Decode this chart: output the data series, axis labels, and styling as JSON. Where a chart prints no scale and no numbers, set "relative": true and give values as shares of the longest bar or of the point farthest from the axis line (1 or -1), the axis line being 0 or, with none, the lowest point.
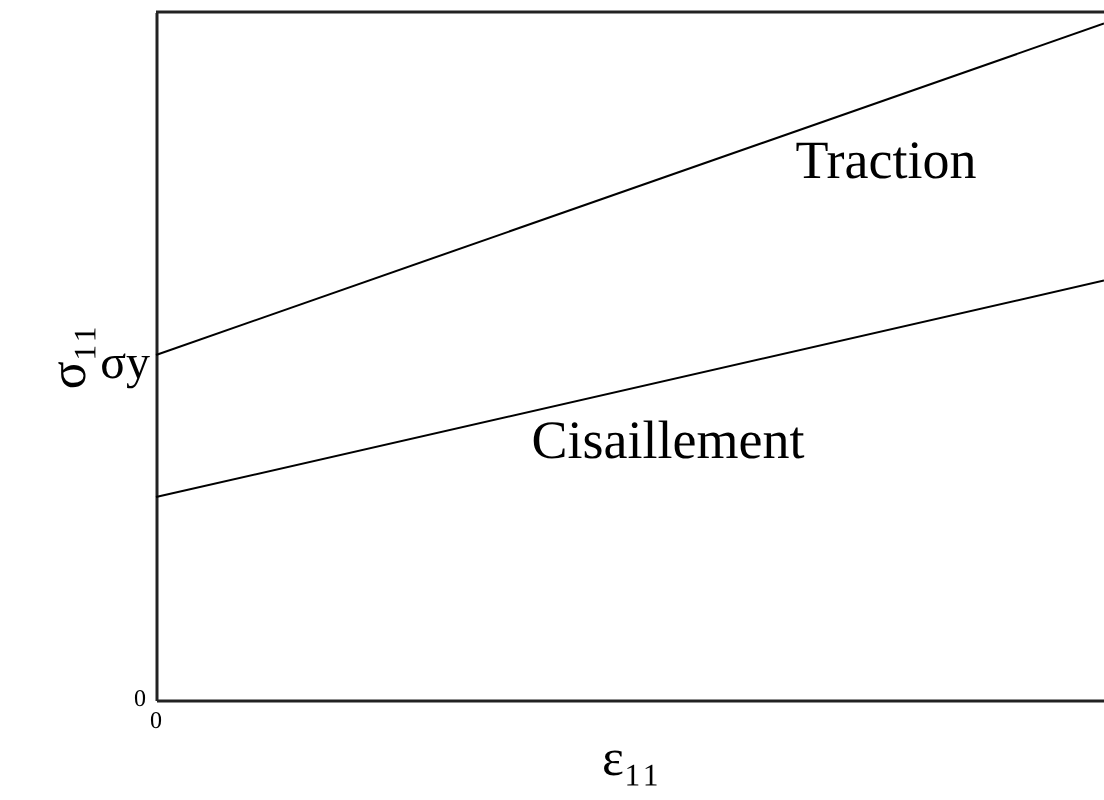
{
  "chart_data": {
    "type": "line",
    "relative": true,
    "xlabel": "ε₁₁",
    "ylabel": "σ₁₁",
    "categories": [
      null,
      null
    ],
    "series": [
      {
        "name": "Traction",
        "color": "#000000",
        "values": [
          0.51,
          1
        ]
      },
      {
        "name": "Cisaillement",
        "color": "#000000",
        "values": [
          0.3,
          0.62
        ]
      }
    ],
    "annotations": [
      "0",
      "σy",
      "0"
    ],
    "legend": false,
    "marker": "none",
    "line_style": "solid"
  }
}
